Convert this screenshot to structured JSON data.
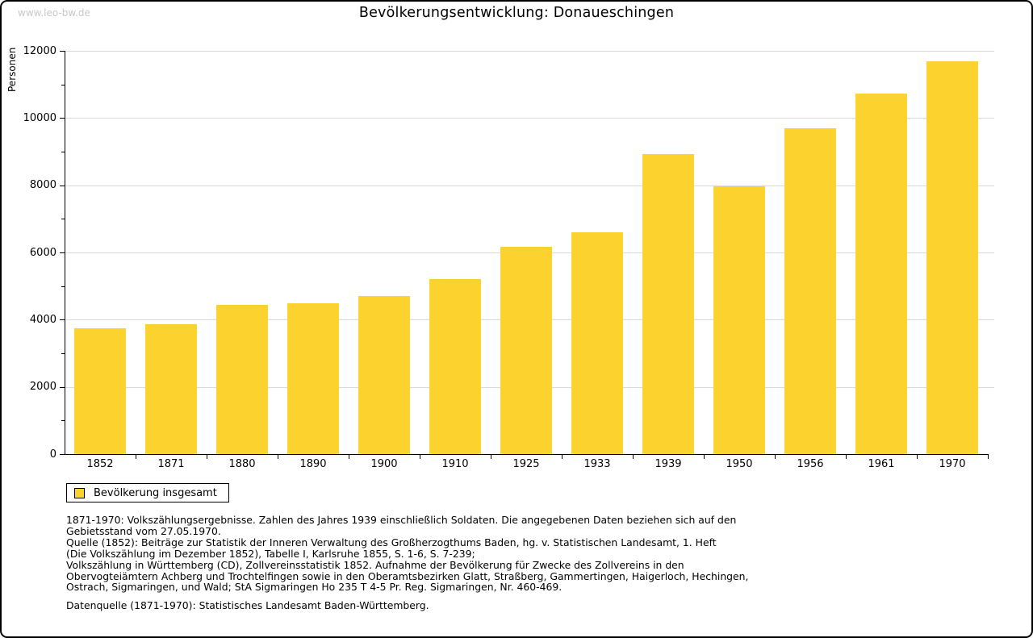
{
  "watermark": "www.leo-bw.de",
  "title": "Bevölkerungsentwicklung: Donaueschingen",
  "colors": {
    "bar": "#fcd32e",
    "grid": "#d9d9d9",
    "axis": "#000000",
    "watermark": "#c9c9c9"
  },
  "legend": {
    "label": "Bevölkerung insgesamt"
  },
  "chart_data": {
    "type": "bar",
    "title": "Bevölkerungsentwicklung: Donaueschingen",
    "xlabel": "",
    "ylabel": "Personen",
    "series_name": "Bevölkerung insgesamt",
    "categories": [
      "1852",
      "1871",
      "1880",
      "1890",
      "1900",
      "1910",
      "1925",
      "1933",
      "1939",
      "1950",
      "1956",
      "1961",
      "1970"
    ],
    "values": [
      3750,
      3860,
      4440,
      4480,
      4700,
      5210,
      6160,
      6610,
      8920,
      7960,
      9700,
      10740,
      11680
    ],
    "ylim": [
      0,
      12000
    ],
    "yticks": [
      0,
      2000,
      4000,
      6000,
      8000,
      10000,
      12000
    ],
    "minor_ytick_step": 1000,
    "grid": true,
    "legend_position": "bottom-left"
  },
  "footnotes": {
    "block1_lines": [
      "1871-1970: Volkszählungsergebnisse. Zahlen des Jahres 1939 einschließlich Soldaten. Die angegebenen Daten beziehen sich auf den",
      "Gebietsstand vom 27.05.1970.",
      "Quelle (1852): Beiträge zur Statistik der Inneren Verwaltung des Großherzogthums Baden, hg. v. Statistischen Landesamt, 1. Heft",
      "(Die Volkszählung im Dezember 1852), Tabelle I, Karlsruhe 1855, S. 1-6, S. 7-239;",
      "Volkszählung in Württemberg (CD), Zollvereinsstatistik 1852. Aufnahme der Bevölkerung für Zwecke des Zollvereins in den",
      "Obervogteiämtern Achberg und Trochtelfingen sowie in den Oberamtsbezirken Glatt, Straßberg, Gammertingen, Haigerloch, Hechingen,",
      "Ostrach, Sigmaringen, und Wald; StA Sigmaringen Ho 235 T 4-5 Pr. Reg. Sigmaringen, Nr. 460-469."
    ],
    "datasource": "Datenquelle (1871-1970): Statistisches Landesamt Baden-Württemberg."
  }
}
